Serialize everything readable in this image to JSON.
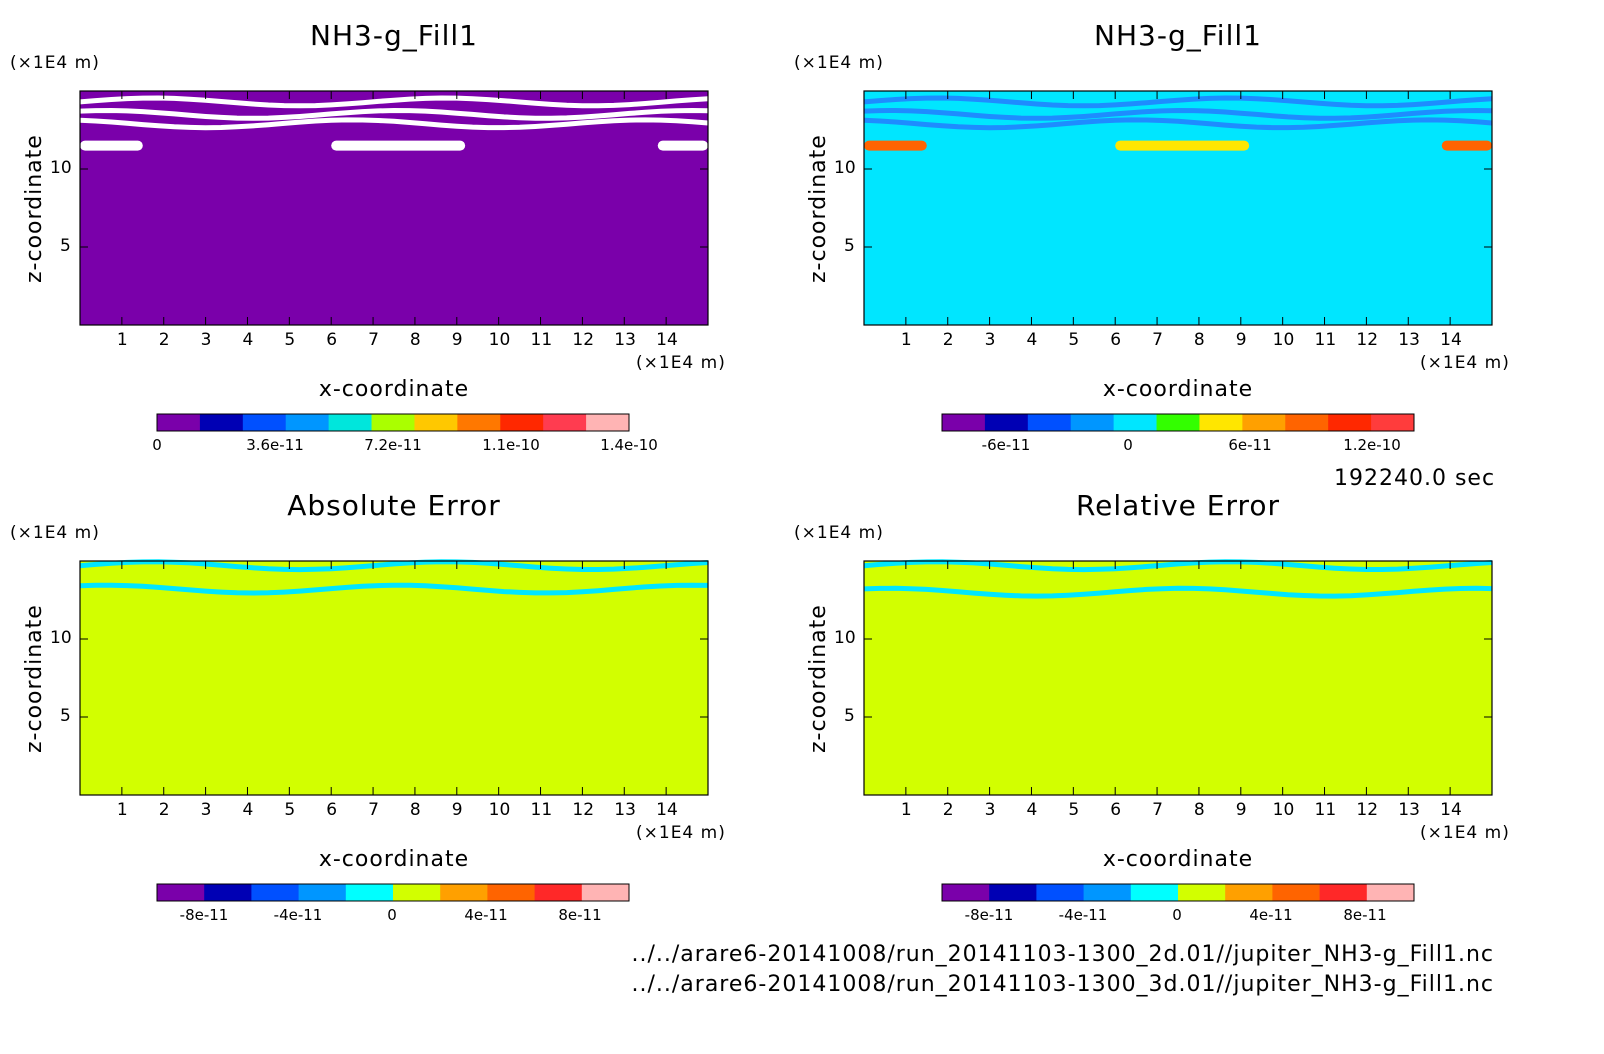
{
  "figure": {
    "time_label": "192240.0 sec",
    "source_paths": [
      "../../arare6-20141008/run_20141103-1300_2d.01//jupiter_NH3-g_Fill1.nc",
      "../../arare6-20141008/run_20141103-1300_3d.01//jupiter_NH3-g_Fill1.nc"
    ]
  },
  "chart_data": [
    {
      "type": "heatmap",
      "title": "NH3-g_Fill1",
      "xlabel": "x-coordinate",
      "ylabel": "z-coordinate",
      "x_unit": "(×1E4 m)",
      "y_unit": "(×1E4 m)",
      "xlim": [
        0,
        15
      ],
      "ylim": [
        0,
        15
      ],
      "x_ticks": [
        "1",
        "2",
        "3",
        "4",
        "5",
        "6",
        "7",
        "8",
        "9",
        "10",
        "11",
        "12",
        "13",
        "14"
      ],
      "y_ticks": [
        "5",
        "10"
      ],
      "background_color": "#7a00aa",
      "colorbar": {
        "colors": [
          "#7a00aa",
          "#0000b4",
          "#0050ff",
          "#0096ff",
          "#00e6dc",
          "#aaff00",
          "#ffc800",
          "#ff7800",
          "#ff2800",
          "#ff3c50",
          "#ffb4b4"
        ],
        "ticks": [
          "0",
          "3.6e-11",
          "7.2e-11",
          "1.1e-10",
          "1.4e-10"
        ]
      },
      "features": [
        {
          "kind": "band",
          "z": 14.3,
          "color": "#ffffff"
        },
        {
          "kind": "band",
          "z": 13.5,
          "color": "#ffffff"
        },
        {
          "kind": "band",
          "z": 12.9,
          "color": "#ffffff"
        },
        {
          "kind": "blob",
          "x0": 0,
          "x1": 1.5,
          "z": 11.5,
          "color": "#ffffff"
        },
        {
          "kind": "blob",
          "x0": 6,
          "x1": 9.2,
          "z": 11.5,
          "color": "#ffffff"
        },
        {
          "kind": "blob",
          "x0": 13.8,
          "x1": 15,
          "z": 11.5,
          "color": "#ffffff"
        }
      ]
    },
    {
      "type": "heatmap",
      "title": "NH3-g_Fill1",
      "xlabel": "x-coordinate",
      "ylabel": "z-coordinate",
      "x_unit": "(×1E4 m)",
      "y_unit": "(×1E4 m)",
      "xlim": [
        0,
        15
      ],
      "ylim": [
        0,
        15
      ],
      "x_ticks": [
        "1",
        "2",
        "3",
        "4",
        "5",
        "6",
        "7",
        "8",
        "9",
        "10",
        "11",
        "12",
        "13",
        "14"
      ],
      "y_ticks": [
        "5",
        "10"
      ],
      "background_color": "#00e6ff",
      "colorbar": {
        "colors": [
          "#7a00aa",
          "#0000b4",
          "#0050ff",
          "#0096ff",
          "#00e6ff",
          "#33ff00",
          "#ffe600",
          "#ffa000",
          "#ff6400",
          "#ff2800",
          "#ff3c3c"
        ],
        "ticks": [
          "-6e-11",
          "0",
          "6e-11",
          "1.2e-10"
        ]
      },
      "features": [
        {
          "kind": "band",
          "z": 14.3,
          "color": "#1e8cff"
        },
        {
          "kind": "band",
          "z": 13.5,
          "color": "#1e8cff"
        },
        {
          "kind": "band",
          "z": 12.9,
          "color": "#1e8cff"
        },
        {
          "kind": "blob",
          "x0": 0,
          "x1": 1.5,
          "z": 11.5,
          "color": "#ff6400"
        },
        {
          "kind": "blob",
          "x0": 6,
          "x1": 9.2,
          "z": 11.5,
          "color": "#ffe600"
        },
        {
          "kind": "blob",
          "x0": 13.8,
          "x1": 15,
          "z": 11.5,
          "color": "#ff6400"
        }
      ]
    },
    {
      "type": "heatmap",
      "title": "Absolute Error",
      "xlabel": "x-coordinate",
      "ylabel": "z-coordinate",
      "x_unit": "(×1E4 m)",
      "y_unit": "(×1E4 m)",
      "xlim": [
        0,
        15
      ],
      "ylim": [
        0,
        15
      ],
      "x_ticks": [
        "1",
        "2",
        "3",
        "4",
        "5",
        "6",
        "7",
        "8",
        "9",
        "10",
        "11",
        "12",
        "13",
        "14"
      ],
      "y_ticks": [
        "5",
        "10"
      ],
      "background_color": "#d2ff00",
      "colorbar": {
        "colors": [
          "#7a00aa",
          "#0000b4",
          "#0050ff",
          "#0096ff",
          "#00ffff",
          "#d2ff00",
          "#ffa000",
          "#ff6400",
          "#ff2828",
          "#ffb4b4"
        ],
        "ticks": [
          "-8e-11",
          "-4e-11",
          "0",
          "4e-11",
          "8e-11"
        ]
      },
      "features": [
        {
          "kind": "band",
          "z": 14.7,
          "color": "#00e6ff"
        },
        {
          "kind": "band",
          "z": 13.2,
          "color": "#00e6ff"
        }
      ]
    },
    {
      "type": "heatmap",
      "title": "Relative Error",
      "xlabel": "x-coordinate",
      "ylabel": "z-coordinate",
      "x_unit": "(×1E4 m)",
      "y_unit": "(×1E4 m)",
      "xlim": [
        0,
        15
      ],
      "ylim": [
        0,
        15
      ],
      "x_ticks": [
        "1",
        "2",
        "3",
        "4",
        "5",
        "6",
        "7",
        "8",
        "9",
        "10",
        "11",
        "12",
        "13",
        "14"
      ],
      "y_ticks": [
        "5",
        "10"
      ],
      "background_color": "#d2ff00",
      "colorbar": {
        "colors": [
          "#7a00aa",
          "#0000b4",
          "#0050ff",
          "#0096ff",
          "#00ffff",
          "#d2ff00",
          "#ffa000",
          "#ff6400",
          "#ff2828",
          "#ffb4b4"
        ],
        "ticks": [
          "-8e-11",
          "-4e-11",
          "0",
          "4e-11",
          "8e-11"
        ]
      },
      "features": [
        {
          "kind": "band",
          "z": 14.7,
          "color": "#00e6ff"
        },
        {
          "kind": "band",
          "z": 13.0,
          "color": "#00e6ff"
        }
      ]
    }
  ]
}
